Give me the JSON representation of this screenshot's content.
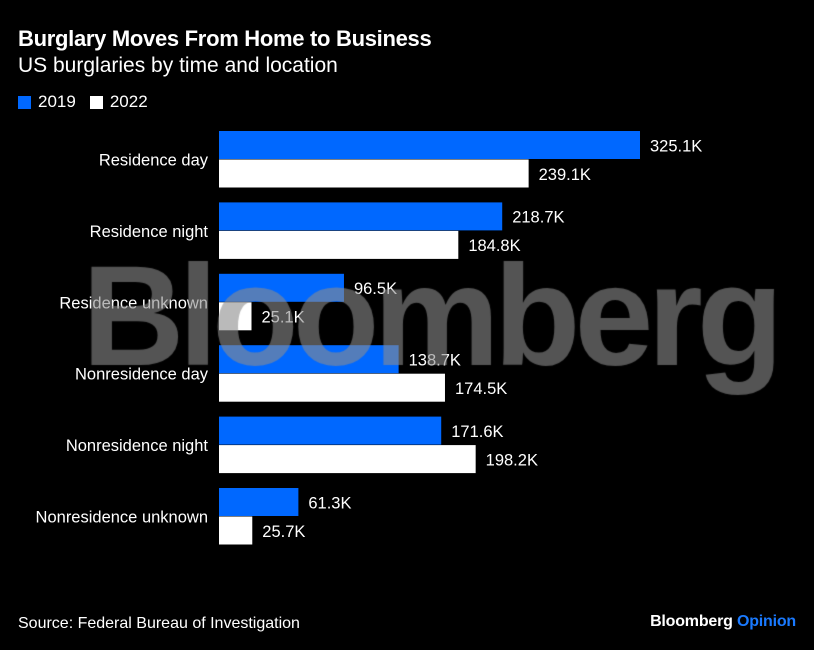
{
  "chart_data": {
    "type": "bar",
    "orientation": "horizontal",
    "title": "Burglary Moves From Home to Business",
    "subtitle": "US burglaries by time and location",
    "categories": [
      "Residence day",
      "Residence night",
      "Residence unknown",
      "Nonresidence day",
      "Nonresidence night",
      "Nonresidence unknown"
    ],
    "series": [
      {
        "name": "2019",
        "color": "#0068ff",
        "values": [
          325.1,
          218.7,
          96.5,
          138.7,
          171.6,
          61.3
        ],
        "labels": [
          "325.1K",
          "218.7K",
          "96.5K",
          "138.7K",
          "171.6K",
          "61.3K"
        ]
      },
      {
        "name": "2022",
        "color": "#ffffff",
        "values": [
          239.1,
          184.8,
          25.1,
          174.5,
          198.2,
          25.7
        ],
        "labels": [
          "239.1K",
          "184.8K",
          "25.1K",
          "174.5K",
          "198.2K",
          "25.7K"
        ]
      }
    ],
    "unit": "thousands",
    "legend_position": "top-left",
    "grid": false
  },
  "source": "Source: Federal Bureau of Investigation",
  "brand": {
    "name": "Bloomberg",
    "suffix": "Opinion"
  },
  "watermark": "Bloomberg"
}
